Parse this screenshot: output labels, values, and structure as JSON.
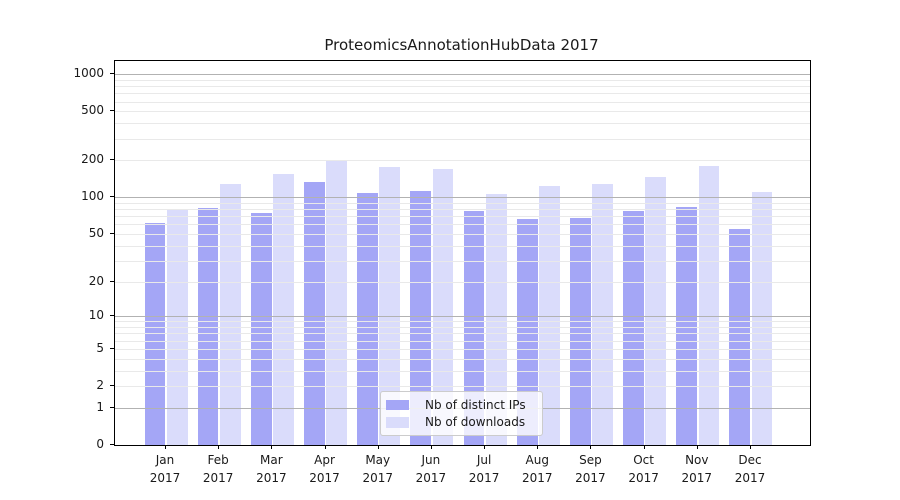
{
  "chart_data": {
    "type": "bar",
    "title": "ProteomicsAnnotationHubData 2017",
    "categories": [
      "Jan",
      "Feb",
      "Mar",
      "Apr",
      "May",
      "Jun",
      "Jul",
      "Aug",
      "Sep",
      "Oct",
      "Nov",
      "Dec"
    ],
    "category_year": "2017",
    "series": [
      {
        "name": "Nb of distinct IPs",
        "color": "#a4a6f6",
        "values": [
          61,
          81,
          75,
          134,
          108,
          113,
          77,
          67,
          68,
          77,
          83,
          55
        ]
      },
      {
        "name": "Nb of downloads",
        "color": "#dadcfb",
        "values": [
          78,
          128,
          154,
          200,
          178,
          170,
          107,
          124,
          128,
          146,
          180,
          111
        ]
      }
    ],
    "yticks": [
      0,
      1,
      2,
      5,
      10,
      20,
      50,
      100,
      200,
      500,
      1000
    ],
    "ylim": [
      0,
      1000
    ],
    "yscale": "log10(value+1)",
    "grid": "horizontal",
    "grid_major_at": [
      1,
      10,
      100,
      1000
    ],
    "legend_position": "lower center",
    "colors": {
      "major_grid": "#b2b2b2",
      "minor_grid": "#e9e9e9",
      "axis": "#000000",
      "legend_border": "#cccccc"
    }
  }
}
